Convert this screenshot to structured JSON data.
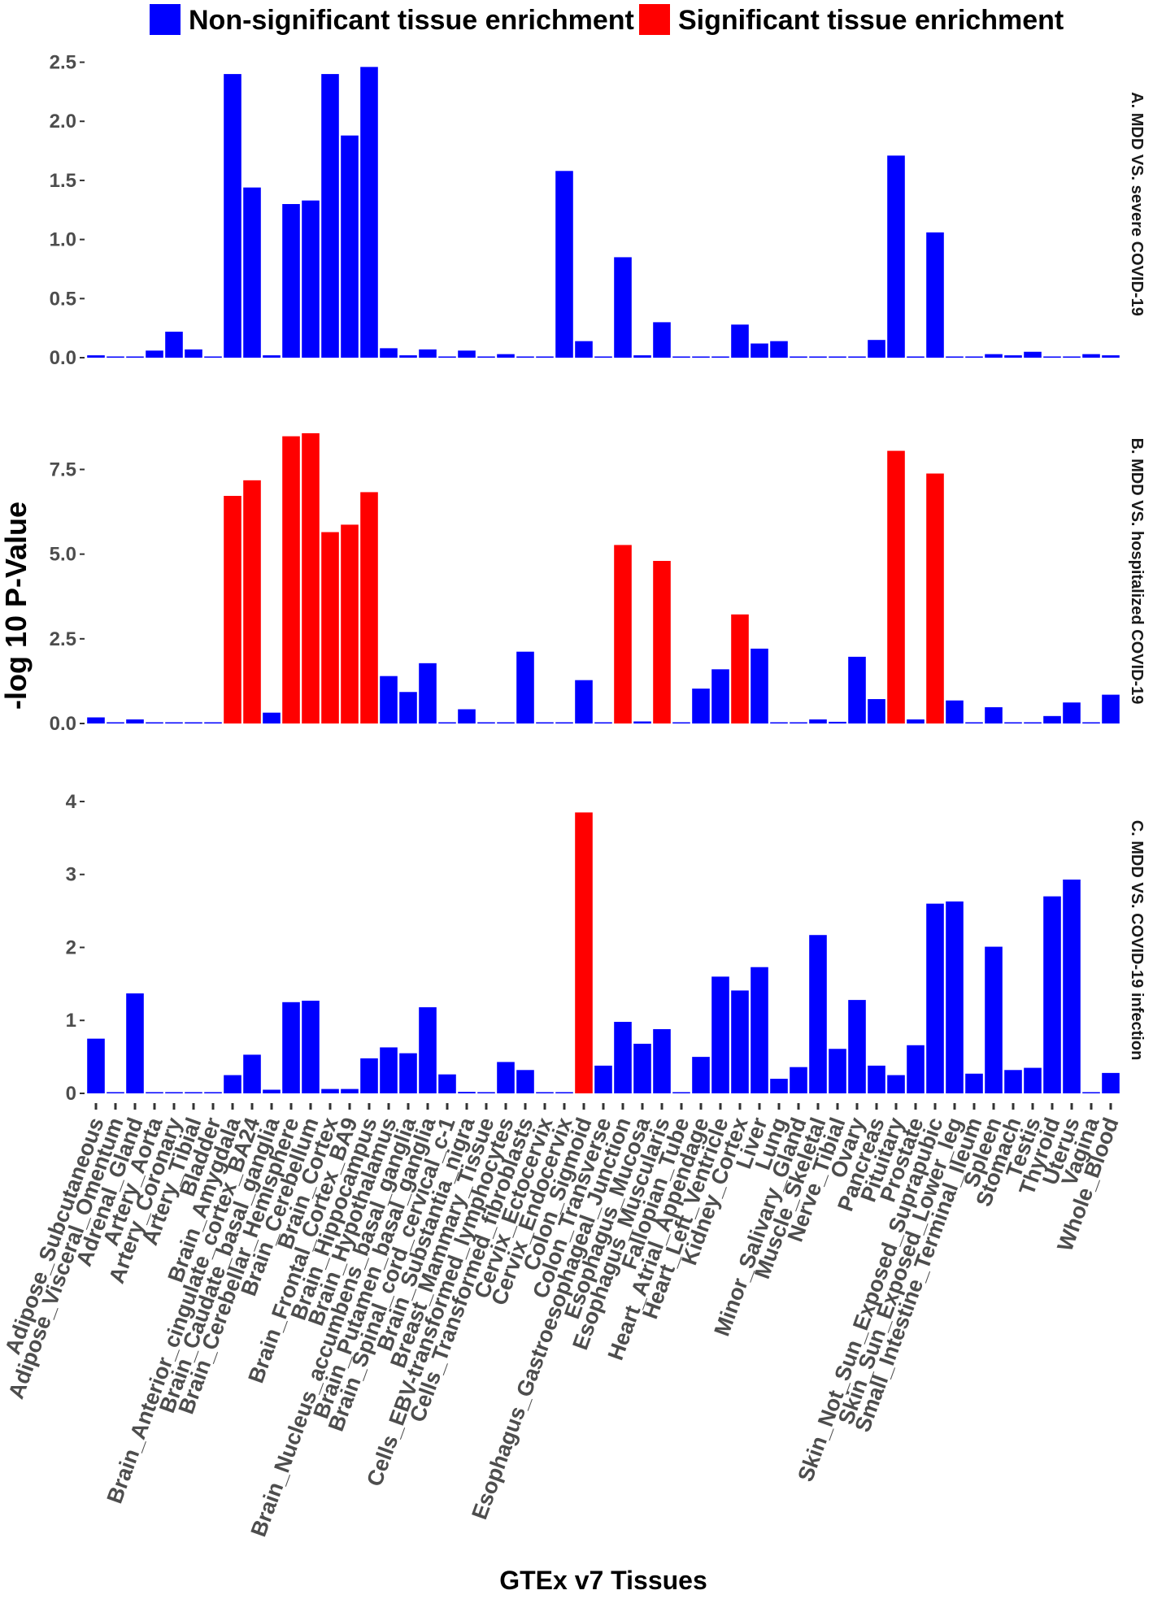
{
  "chart_data": {
    "type": "bar",
    "xlabel": "GTEx v7 Tissues",
    "ylabel": "-log 10 P-Value",
    "legend": {
      "position": "top",
      "entries": [
        {
          "label": "Non-significant tissue enrichment",
          "color": "#0000ff"
        },
        {
          "label": "Significant tissue enrichment",
          "color": "#ff0000"
        }
      ]
    },
    "colors": {
      "nonsig": "#0000ff",
      "sig": "#ff0000"
    },
    "categories": [
      "Adipose_Subcutaneous",
      "Adipose_Visceral_Omentum",
      "Adrenal_Gland",
      "Artery_Aorta",
      "Artery_Coronary",
      "Artery_Tibial",
      "Bladder",
      "Brain_Amygdala",
      "Brain_Anterior_cingulate_cortex_BA24",
      "Brain_Caudate_basal_ganglia",
      "Brain_Cerebellar_Hemisphere",
      "Brain_Cerebellum",
      "Brain_Cortex",
      "Brain_Frontal_Cortex_BA9",
      "Brain_Hippocampus",
      "Brain_Hypothalamus",
      "Brain_Nucleus_accumbens_basal_ganglia",
      "Brain_Putamen_basal_ganglia",
      "Brain_Spinal_cord_cervical_c-1",
      "Brain_Substantia_nigra",
      "Breast_Mammary_Tissue",
      "Cells_EBV-transformed_lymphocytes",
      "Cells_Transformed_fibroblasts",
      "Cervix_Ectocervix",
      "Cervix_Endocervix",
      "Colon_Sigmoid",
      "Colon_Transverse",
      "Esophagus_Gastroesophageal_Junction",
      "Esophagus_Mucosa",
      "Esophagus_Muscularis",
      "Fallopian_Tube",
      "Heart_Atrial_Appendage",
      "Heart_Left_Ventricle",
      "Kidney_Cortex",
      "Liver",
      "Lung",
      "Minor_Salivary_Gland",
      "Muscle_Skeletal",
      "Nerve_Tibial",
      "Ovary",
      "Pancreas",
      "Pituitary",
      "Prostate",
      "Skin_Not_Sun_Exposed_Suprapubic",
      "Skin_Sun_Exposed_Lower_leg",
      "Small_Intestine_Terminal_Ileum",
      "Spleen",
      "Stomach",
      "Testis",
      "Thyroid",
      "Uterus",
      "Vagina",
      "Whole_Blood"
    ],
    "panels": [
      {
        "label": "A. MDD VS. severe COVID-19",
        "ylim": [
          0,
          2.6
        ],
        "yticks": [
          0.0,
          0.5,
          1.0,
          1.5,
          2.0,
          2.5
        ],
        "ytick_labels": [
          "0.0",
          "0.5",
          "1.0",
          "1.5",
          "2.0",
          "2.5"
        ],
        "values": [
          0.02,
          0.01,
          0.01,
          0.06,
          0.22,
          0.07,
          0.01,
          2.4,
          1.44,
          0.02,
          1.3,
          1.33,
          2.4,
          1.88,
          2.46,
          0.08,
          0.02,
          0.07,
          0.01,
          0.06,
          0.01,
          0.03,
          0.01,
          0.01,
          1.58,
          0.14,
          0.01,
          0.85,
          0.02,
          0.3,
          0.01,
          0.01,
          0.01,
          0.28,
          0.12,
          0.14,
          0.01,
          0.01,
          0.01,
          0.01,
          0.15,
          1.71,
          0.01,
          1.06,
          0.01,
          0.01,
          0.03,
          0.02,
          0.05,
          0.01,
          0.01,
          0.03,
          0.02
        ],
        "significant": []
      },
      {
        "label": "B. MDD VS. hospitalized COVID-19",
        "ylim": [
          0,
          9.0
        ],
        "yticks": [
          0.0,
          2.5,
          5.0,
          7.5
        ],
        "ytick_labels": [
          "0.0",
          "2.5",
          "5.0",
          "7.5"
        ],
        "values": [
          0.18,
          0.03,
          0.12,
          0.02,
          0.02,
          0.02,
          0.02,
          6.72,
          7.18,
          0.32,
          8.48,
          8.57,
          5.65,
          5.87,
          6.83,
          1.4,
          0.93,
          1.78,
          0.03,
          0.42,
          0.03,
          0.03,
          2.12,
          0.03,
          0.03,
          1.28,
          0.03,
          5.27,
          0.06,
          4.8,
          0.03,
          1.03,
          1.6,
          3.22,
          2.21,
          0.03,
          0.03,
          0.12,
          0.05,
          1.97,
          0.72,
          8.05,
          0.12,
          7.38,
          0.68,
          0.03,
          0.48,
          0.03,
          0.03,
          0.22,
          0.62,
          0.03,
          0.85
        ],
        "significant": [
          7,
          8,
          10,
          11,
          12,
          13,
          14,
          27,
          29,
          33,
          41,
          43
        ]
      },
      {
        "label": "C. MDD VS. COVID-19 infection",
        "ylim": [
          0,
          4.2
        ],
        "yticks": [
          0,
          1,
          2,
          3,
          4
        ],
        "ytick_labels": [
          "0",
          "1",
          "2",
          "3",
          "4"
        ],
        "values": [
          0.75,
          0.01,
          1.37,
          0.01,
          0.01,
          0.01,
          0.01,
          0.25,
          0.53,
          0.05,
          1.25,
          1.27,
          0.06,
          0.06,
          0.48,
          0.63,
          0.55,
          1.18,
          0.26,
          0.02,
          0.01,
          0.43,
          0.32,
          0.01,
          0.01,
          3.85,
          0.38,
          0.98,
          0.68,
          0.88,
          0.01,
          0.5,
          1.6,
          1.41,
          1.73,
          0.2,
          0.36,
          2.17,
          0.61,
          1.28,
          0.38,
          0.25,
          0.66,
          2.6,
          2.63,
          0.27,
          2.01,
          0.32,
          0.35,
          2.7,
          2.93,
          0.01,
          0.28
        ],
        "significant": [
          25
        ]
      }
    ]
  }
}
